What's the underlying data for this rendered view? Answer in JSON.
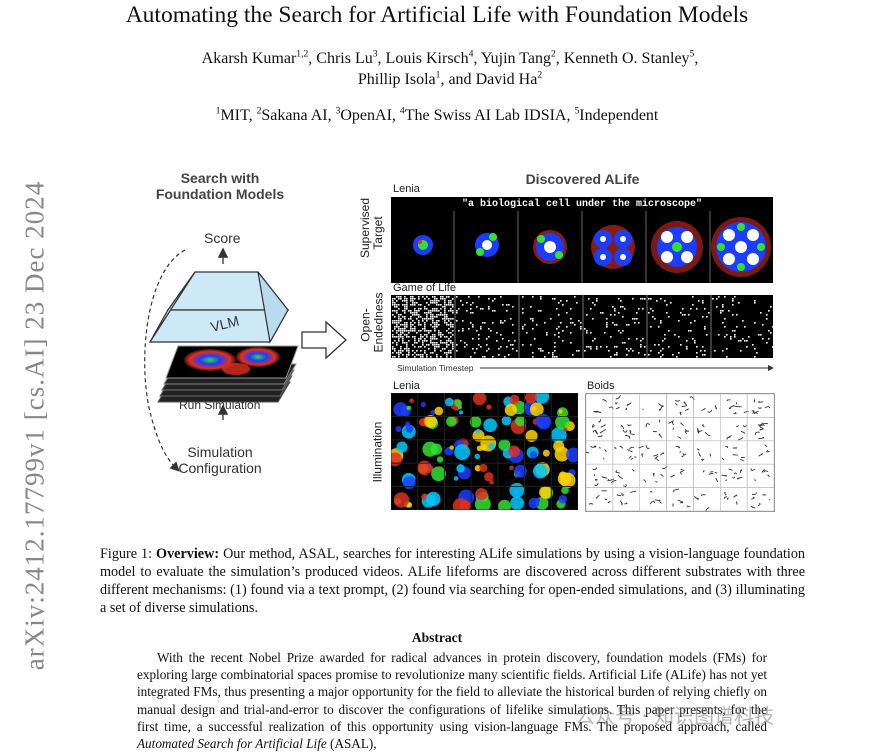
{
  "paper": {
    "title": "Automating the Search for Artificial Life with Foundation Models",
    "authors_line1": "Akarsh Kumar",
    "authors": [
      {
        "name": "Akarsh Kumar",
        "sup": "1,2"
      },
      {
        "name": "Chris Lu",
        "sup": "3"
      },
      {
        "name": "Louis Kirsch",
        "sup": "4"
      },
      {
        "name": "Yujin Tang",
        "sup": "2"
      },
      {
        "name": "Kenneth O. Stanley",
        "sup": "5"
      },
      {
        "name": "Phillip Isola",
        "sup": "1"
      },
      {
        "name": "David Ha",
        "sup": "2"
      }
    ],
    "affiliations": [
      {
        "sup": "1",
        "name": "MIT"
      },
      {
        "sup": "2",
        "name": "Sakana AI"
      },
      {
        "sup": "3",
        "name": "OpenAI"
      },
      {
        "sup": "4",
        "name": "The Swiss AI Lab IDSIA"
      },
      {
        "sup": "5",
        "name": "Independent"
      }
    ],
    "arxiv_stamp": "arXiv:2412.17799v1  [cs.AI]  23 Dec 2024"
  },
  "figure": {
    "left_title_line1": "Search with",
    "left_title_line2": "Foundation Models",
    "score_label": "Score",
    "vlm_label": "VLM",
    "run_label": "Run Simulation",
    "config_line1": "Simulation",
    "config_line2": "Configuration",
    "right_title": "Discovered ALife",
    "lenia_label": "Lenia",
    "supervised_label_1": "Supervised",
    "supervised_label_2": "Target",
    "prompt_text": "\"a biological cell under the microscope\"",
    "gol_label": "Game of Life",
    "open_label_1": "Open-",
    "open_label_2": "Endedness",
    "timestep_label": "Simulation Timestep",
    "lenia2_label": "Lenia",
    "boids_label": "Boids",
    "illumination_label": "Illumination"
  },
  "caption": {
    "lead": "Figure 1:",
    "bold": "Overview:",
    "text": "Our method, ASAL, searches for interesting ALife simulations by using a vision-language foundation model to evaluate the simulation’s produced videos. ALife lifeforms are discovered across different substrates with three different mechanisms: (1) found via a text prompt, (2) found via searching for open-ended simulations, and (3) illuminating a set of diverse simulations."
  },
  "abstract": {
    "heading": "Abstract",
    "body_part1": "With the recent Nobel Prize awarded for radical advances in protein discovery, foundation models (FMs) for exploring large combinatorial spaces promise to revolutionize many scientific fields. Artificial Life (ALife) has not yet integrated FMs, thus presenting a major opportunity for the field to alleviate the historical burden of relying chiefly on manual design and trial-and-error to discover the configurations of lifelike simulations. This paper presents, for the first time, a successful realization of this opportunity using vision-language FMs. The proposed approach, called",
    "body_italic": "Automated Search for Artificial Life",
    "body_part2": "(ASAL),"
  },
  "watermark": "公众号 · 知识图谱科技",
  "colors": {
    "vlm_fill": "#cde9f6",
    "vlm_stroke": "#333333",
    "lenia_blue": "#1c3cff",
    "lenia_green": "#33e133",
    "lenia_red": "#e0301e",
    "text_gray": "#888888"
  }
}
